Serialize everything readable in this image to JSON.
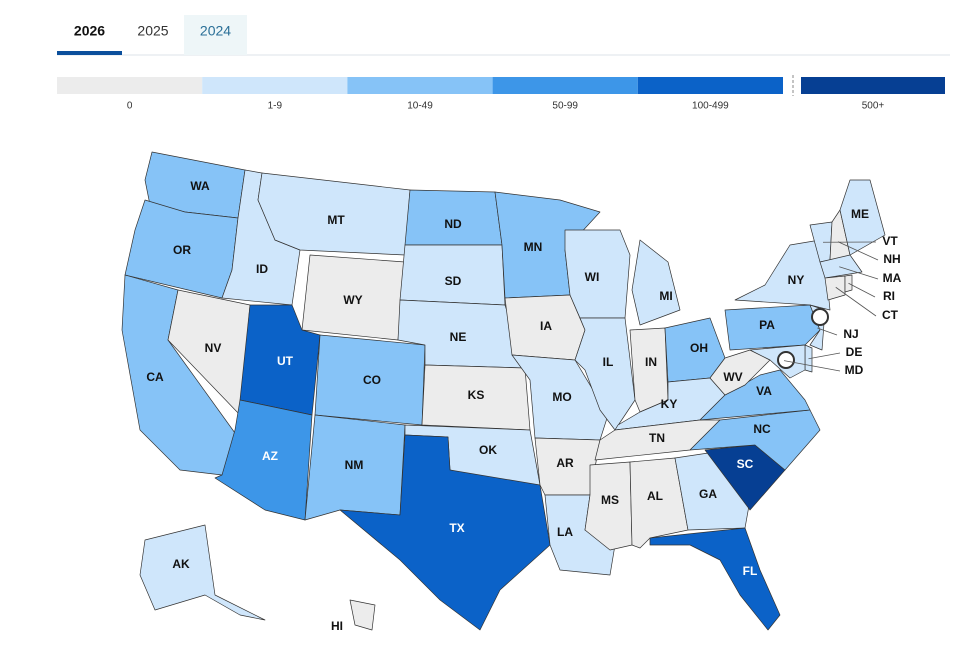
{
  "tabs": [
    "2026",
    "2025",
    "2024"
  ],
  "legend": [
    {
      "label": "0",
      "color": "#ececec"
    },
    {
      "label": "1-9",
      "color": "#cfe6fb"
    },
    {
      "label": "10-49",
      "color": "#86c3f7"
    },
    {
      "label": "50-99",
      "color": "#3d96e8"
    },
    {
      "label": "100-499",
      "color": "#0b62c8"
    },
    {
      "label": "500+",
      "color": "#063f93"
    }
  ],
  "states": [
    {
      "abbr": "WA",
      "bucket": 2
    },
    {
      "abbr": "OR",
      "bucket": 2
    },
    {
      "abbr": "CA",
      "bucket": 2
    },
    {
      "abbr": "NV",
      "bucket": 0
    },
    {
      "abbr": "ID",
      "bucket": 1
    },
    {
      "abbr": "MT",
      "bucket": 1
    },
    {
      "abbr": "WY",
      "bucket": 0
    },
    {
      "abbr": "UT",
      "bucket": 4
    },
    {
      "abbr": "AZ",
      "bucket": 3
    },
    {
      "abbr": "CO",
      "bucket": 2
    },
    {
      "abbr": "NM",
      "bucket": 2
    },
    {
      "abbr": "ND",
      "bucket": 2
    },
    {
      "abbr": "SD",
      "bucket": 1
    },
    {
      "abbr": "NE",
      "bucket": 1
    },
    {
      "abbr": "KS",
      "bucket": 0
    },
    {
      "abbr": "OK",
      "bucket": 1
    },
    {
      "abbr": "TX",
      "bucket": 4
    },
    {
      "abbr": "MN",
      "bucket": 2
    },
    {
      "abbr": "IA",
      "bucket": 0
    },
    {
      "abbr": "MO",
      "bucket": 1
    },
    {
      "abbr": "AR",
      "bucket": 0
    },
    {
      "abbr": "LA",
      "bucket": 1
    },
    {
      "abbr": "WI",
      "bucket": 1
    },
    {
      "abbr": "IL",
      "bucket": 1
    },
    {
      "abbr": "MI",
      "bucket": 1
    },
    {
      "abbr": "IN",
      "bucket": 0
    },
    {
      "abbr": "OH",
      "bucket": 2
    },
    {
      "abbr": "KY",
      "bucket": 1
    },
    {
      "abbr": "TN",
      "bucket": 0
    },
    {
      "abbr": "MS",
      "bucket": 0
    },
    {
      "abbr": "AL",
      "bucket": 0
    },
    {
      "abbr": "GA",
      "bucket": 1
    },
    {
      "abbr": "FL",
      "bucket": 4
    },
    {
      "abbr": "SC",
      "bucket": 5
    },
    {
      "abbr": "NC",
      "bucket": 2
    },
    {
      "abbr": "VA",
      "bucket": 2
    },
    {
      "abbr": "WV",
      "bucket": 0
    },
    {
      "abbr": "PA",
      "bucket": 2
    },
    {
      "abbr": "NY",
      "bucket": 1
    },
    {
      "abbr": "VT",
      "bucket": 1
    },
    {
      "abbr": "NH",
      "bucket": 0
    },
    {
      "abbr": "ME",
      "bucket": 1
    },
    {
      "abbr": "MA",
      "bucket": 1
    },
    {
      "abbr": "CT",
      "bucket": 0
    },
    {
      "abbr": "RI",
      "bucket": 0
    },
    {
      "abbr": "NJ",
      "bucket": 1
    },
    {
      "abbr": "DE",
      "bucket": 1
    },
    {
      "abbr": "MD",
      "bucket": 1
    },
    {
      "abbr": "AK",
      "bucket": 1
    },
    {
      "abbr": "HI",
      "bucket": 0
    }
  ]
}
